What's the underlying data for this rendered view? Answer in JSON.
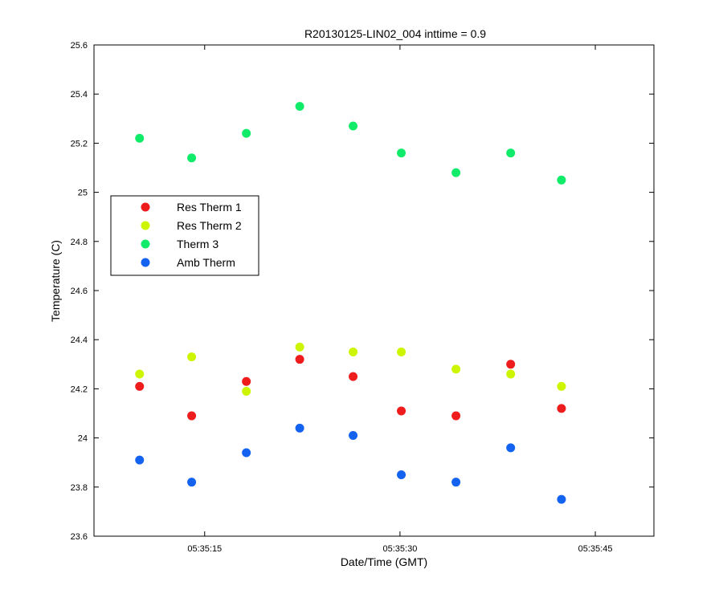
{
  "chart_data": {
    "type": "scatter",
    "title": "R20130125-LIN02_004 inttime = 0.9",
    "xlabel": "Date/Time (GMT)",
    "ylabel": "Temperature (C)",
    "xlim": [
      "05:35:06.5",
      "05:35:49.5"
    ],
    "ylim": [
      23.6,
      25.6
    ],
    "xticks": [
      "05:35:15",
      "05:35:30",
      "05:35:45"
    ],
    "yticks": [
      "23.6",
      "23.8",
      "24",
      "24.2",
      "24.4",
      "24.6",
      "24.8",
      "25",
      "25.2",
      "25.4",
      "25.6"
    ],
    "legend_position": "left, mid-upper inside plot",
    "x": [
      "05:35:10",
      "05:35:14",
      "05:35:18.2",
      "05:35:22.3",
      "05:35:26.4",
      "05:35:30.1",
      "05:35:34.3",
      "05:35:38.5",
      "05:35:42.4"
    ],
    "series": [
      {
        "name": "Res Therm 1",
        "color": "#ee1c1c",
        "values": [
          24.21,
          24.09,
          24.23,
          24.32,
          24.25,
          24.11,
          24.09,
          24.3,
          24.12
        ]
      },
      {
        "name": "Res Therm 2",
        "color": "#cdf500",
        "values": [
          24.26,
          24.33,
          24.19,
          24.37,
          24.35,
          24.35,
          24.28,
          24.26,
          24.21
        ]
      },
      {
        "name": "Therm 3",
        "color": "#10ec6a",
        "values": [
          25.22,
          25.14,
          25.24,
          25.35,
          25.27,
          25.16,
          25.08,
          25.16,
          25.05
        ]
      },
      {
        "name": "Amb Therm",
        "color": "#1463f0",
        "values": [
          23.91,
          23.82,
          23.94,
          24.04,
          24.01,
          23.85,
          23.82,
          23.96,
          23.75
        ]
      }
    ]
  }
}
